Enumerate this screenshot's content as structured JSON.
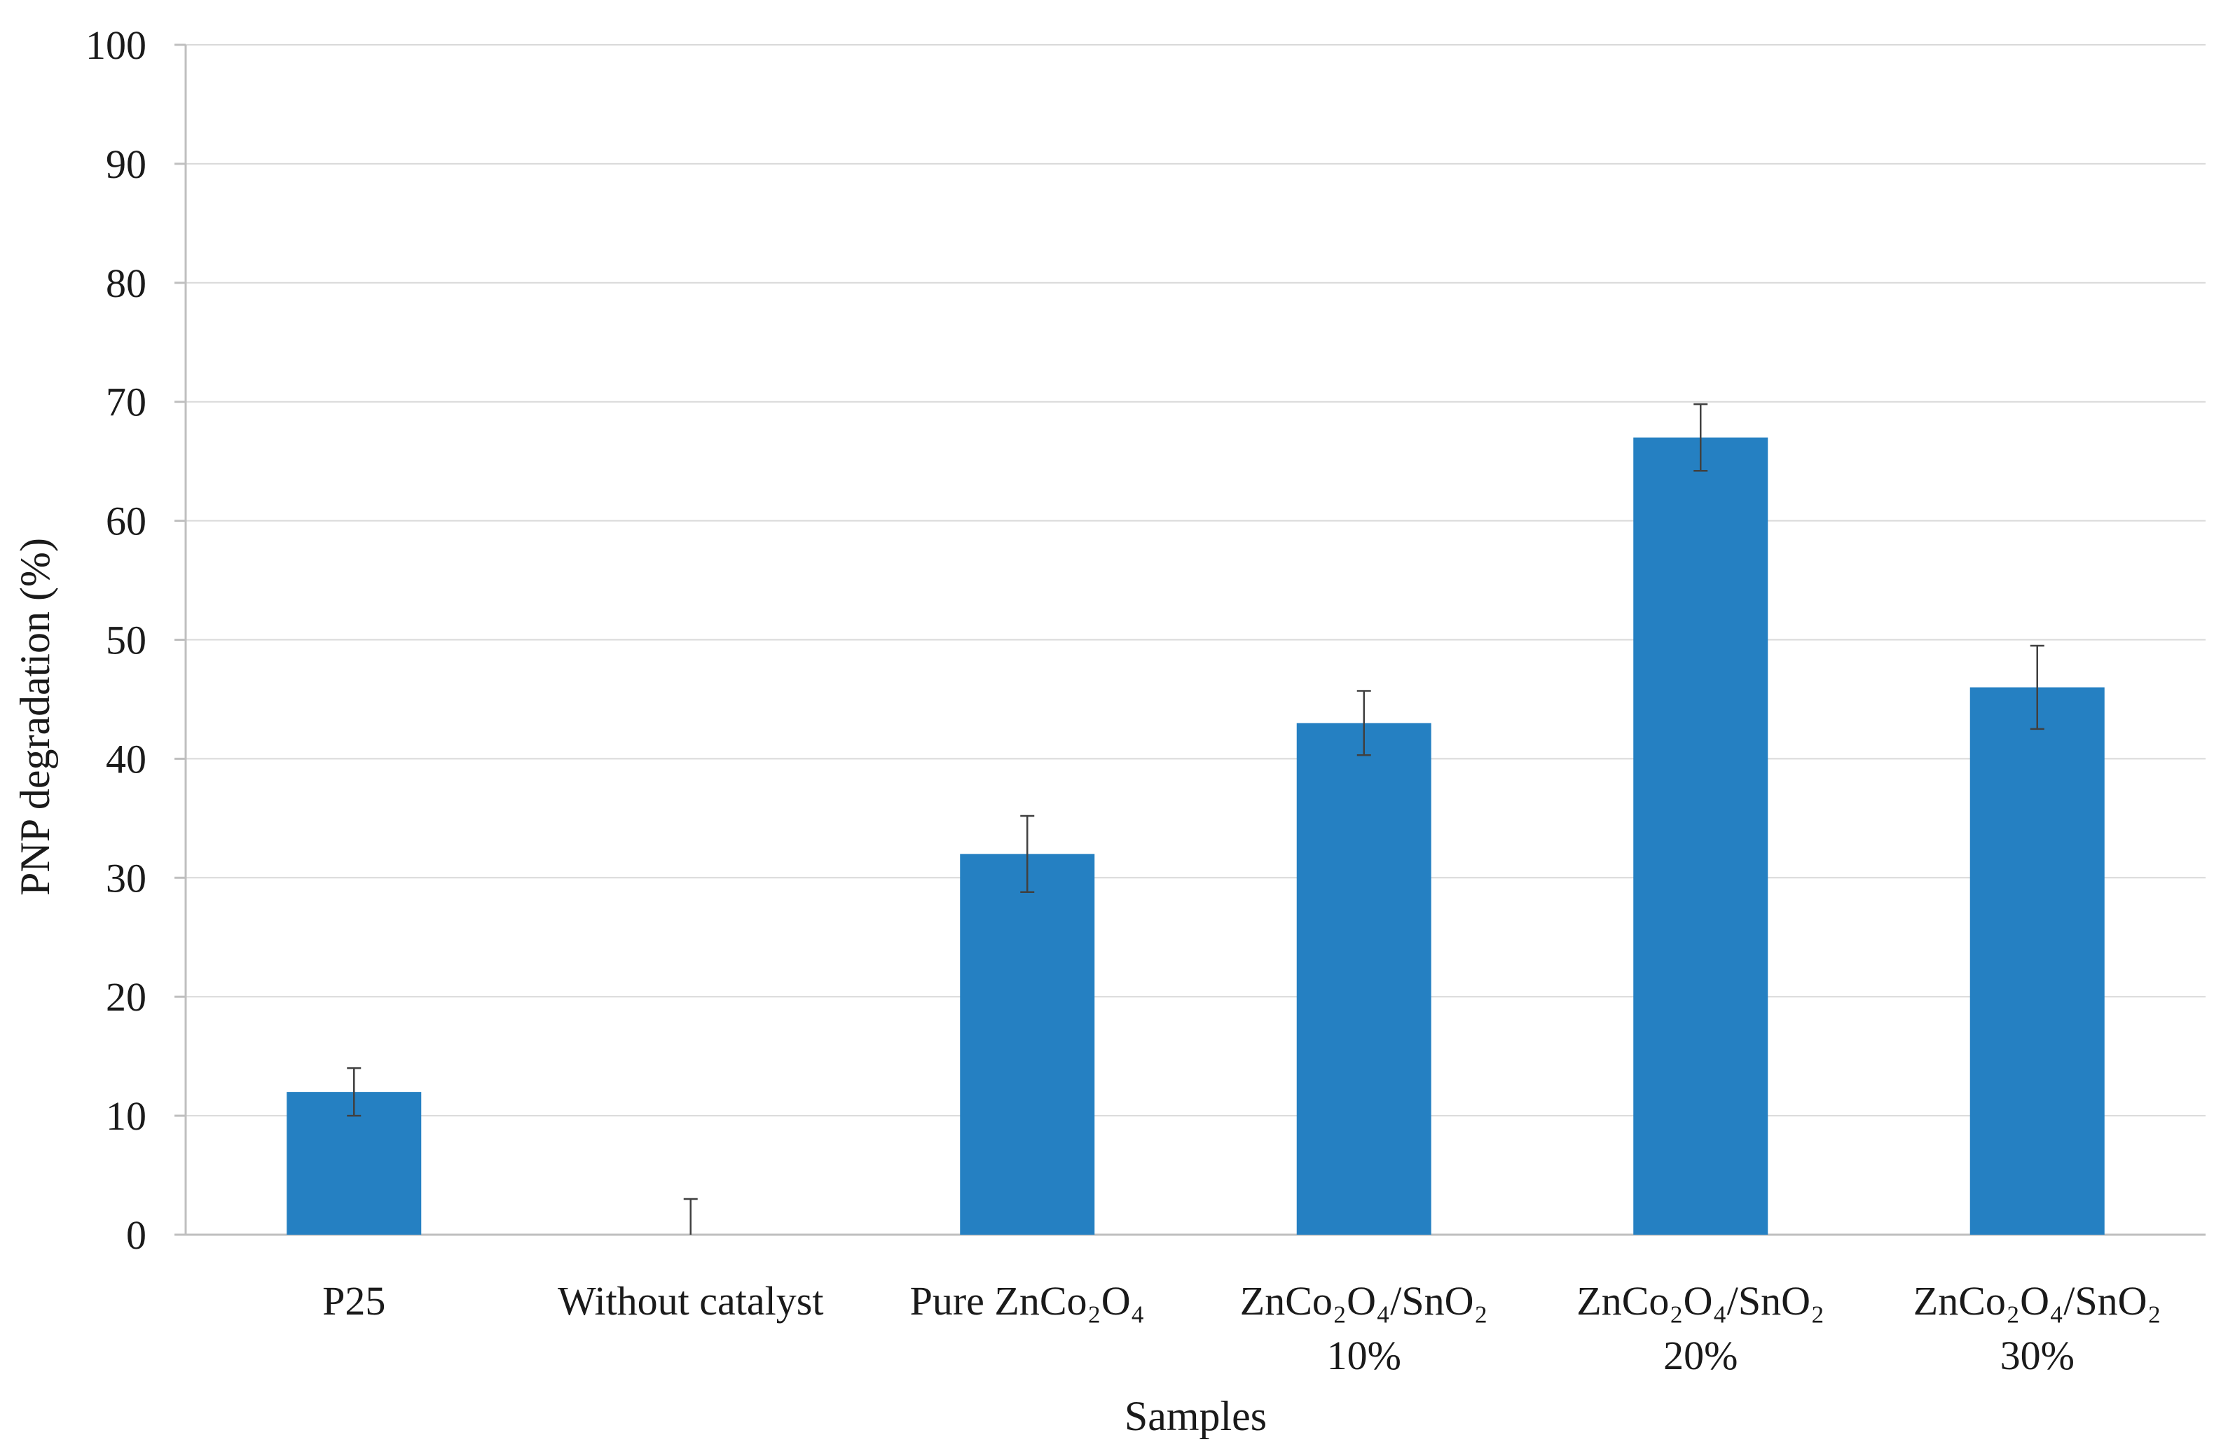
{
  "chart_data": {
    "type": "bar",
    "title": "",
    "xlabel": "Samples",
    "ylabel": "PNP degradation (%)",
    "ylim": [
      0,
      100
    ],
    "yticks": [
      "0",
      "10",
      "20",
      "30",
      "40",
      "50",
      "60",
      "70",
      "80",
      "90",
      "100"
    ],
    "grid": true,
    "bar_color": "#2580c2",
    "categories": [
      {
        "line1": "P25",
        "line2": ""
      },
      {
        "line1": "Without catalyst",
        "line2": ""
      },
      {
        "line1": "Pure ZnCo₂O₄",
        "line2": ""
      },
      {
        "line1": "ZnCo₂O₄/SnO₂",
        "line2": "10%"
      },
      {
        "line1": "ZnCo₂O₄/SnO₂",
        "line2": "20%"
      },
      {
        "line1": "ZnCo₂O₄/SnO₂",
        "line2": "30%"
      }
    ],
    "values": [
      12,
      0,
      32,
      43,
      67,
      46
    ],
    "errors": [
      2,
      3,
      3.2,
      2.7,
      2.8,
      3.5
    ]
  }
}
